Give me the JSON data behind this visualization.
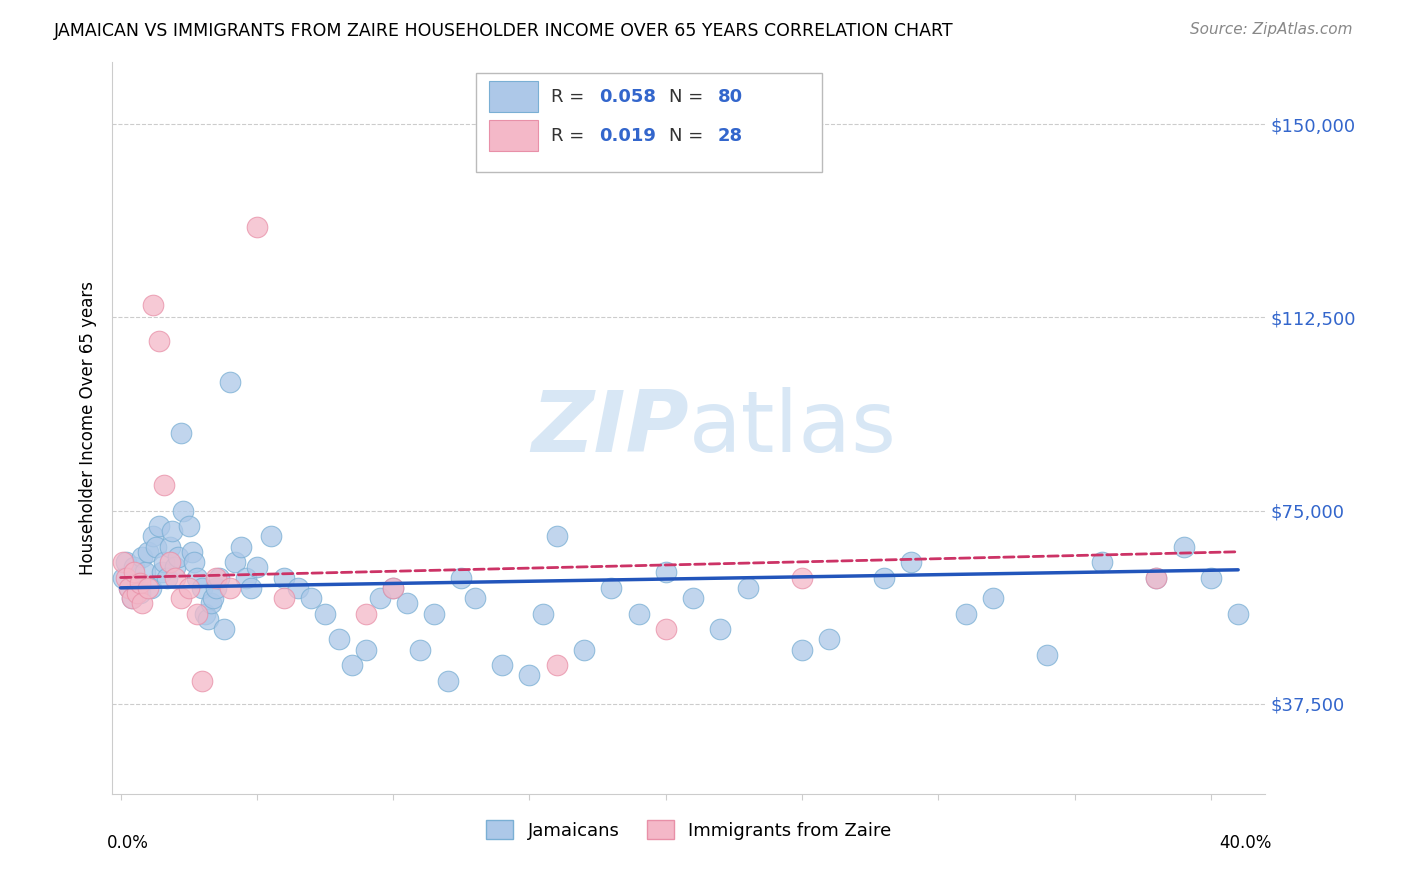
{
  "title": "JAMAICAN VS IMMIGRANTS FROM ZAIRE HOUSEHOLDER INCOME OVER 65 YEARS CORRELATION CHART",
  "source": "Source: ZipAtlas.com",
  "ylabel": "Householder Income Over 65 years",
  "y_tick_labels": [
    "$37,500",
    "$75,000",
    "$112,500",
    "$150,000"
  ],
  "y_tick_values": [
    37500,
    75000,
    112500,
    150000
  ],
  "ylim": [
    20000,
    162000
  ],
  "xlim": [
    -0.003,
    0.42
  ],
  "blue_scatter_color": "#adc8e8",
  "blue_edge_color": "#7aafd4",
  "pink_scatter_color": "#f4b8c8",
  "pink_edge_color": "#e890a8",
  "blue_line_color": "#2255bb",
  "pink_line_color": "#cc3366",
  "grid_color": "#cccccc",
  "right_label_color": "#3366cc",
  "watermark_color": "#b8d4ee",
  "jamaicans_x": [
    0.001,
    0.002,
    0.003,
    0.004,
    0.005,
    0.006,
    0.007,
    0.008,
    0.009,
    0.01,
    0.011,
    0.012,
    0.013,
    0.014,
    0.015,
    0.016,
    0.017,
    0.018,
    0.019,
    0.02,
    0.021,
    0.022,
    0.023,
    0.025,
    0.026,
    0.027,
    0.028,
    0.03,
    0.031,
    0.032,
    0.033,
    0.034,
    0.035,
    0.036,
    0.038,
    0.04,
    0.042,
    0.044,
    0.046,
    0.048,
    0.05,
    0.055,
    0.06,
    0.065,
    0.07,
    0.075,
    0.08,
    0.085,
    0.09,
    0.095,
    0.1,
    0.105,
    0.11,
    0.115,
    0.12,
    0.125,
    0.13,
    0.14,
    0.15,
    0.155,
    0.16,
    0.17,
    0.18,
    0.19,
    0.2,
    0.21,
    0.22,
    0.23,
    0.25,
    0.26,
    0.28,
    0.29,
    0.31,
    0.32,
    0.34,
    0.36,
    0.38,
    0.39,
    0.4,
    0.41
  ],
  "jamaicans_y": [
    62000,
    65000,
    60000,
    58000,
    64000,
    61000,
    59000,
    66000,
    63000,
    67000,
    60000,
    70000,
    68000,
    72000,
    63000,
    65000,
    62000,
    68000,
    71000,
    64000,
    66000,
    90000,
    75000,
    72000,
    67000,
    65000,
    62000,
    60000,
    55000,
    54000,
    57000,
    58000,
    60000,
    62000,
    52000,
    100000,
    65000,
    68000,
    62000,
    60000,
    64000,
    70000,
    62000,
    60000,
    58000,
    55000,
    50000,
    45000,
    48000,
    58000,
    60000,
    57000,
    48000,
    55000,
    42000,
    62000,
    58000,
    45000,
    43000,
    55000,
    70000,
    48000,
    60000,
    55000,
    63000,
    58000,
    52000,
    60000,
    48000,
    50000,
    62000,
    65000,
    55000,
    58000,
    47000,
    65000,
    62000,
    68000,
    62000,
    55000
  ],
  "zaire_x": [
    0.001,
    0.002,
    0.003,
    0.004,
    0.005,
    0.006,
    0.007,
    0.008,
    0.01,
    0.012,
    0.014,
    0.016,
    0.018,
    0.02,
    0.022,
    0.025,
    0.028,
    0.03,
    0.035,
    0.04,
    0.05,
    0.06,
    0.09,
    0.1,
    0.16,
    0.2,
    0.25,
    0.38
  ],
  "zaire_y": [
    65000,
    62000,
    60000,
    58000,
    63000,
    59000,
    61000,
    57000,
    60000,
    115000,
    108000,
    80000,
    65000,
    62000,
    58000,
    60000,
    55000,
    42000,
    62000,
    60000,
    130000,
    58000,
    55000,
    60000,
    45000,
    52000,
    62000,
    62000
  ]
}
